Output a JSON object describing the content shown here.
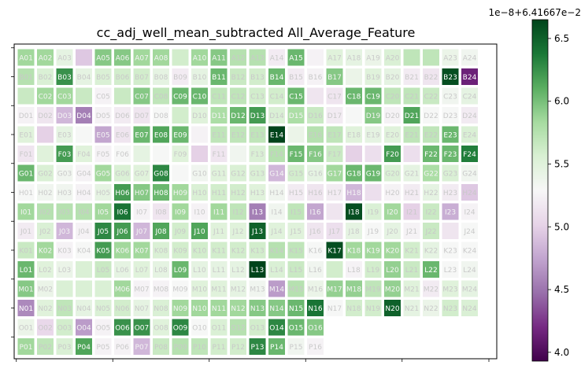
{
  "chart_data": {
    "type": "heatmap",
    "title": "cc_adj_well_mean_subtracted All_Average_Feature",
    "rows": [
      "A",
      "B",
      "C",
      "D",
      "E",
      "F",
      "G",
      "H",
      "I",
      "J",
      "K",
      "L",
      "M",
      "N",
      "O",
      "P"
    ],
    "cols": [
      "01",
      "02",
      "03",
      "04",
      "05",
      "06",
      "07",
      "08",
      "09",
      "10",
      "11",
      "12",
      "13",
      "14",
      "15",
      "16",
      "17",
      "18",
      "19",
      "20",
      "21",
      "22",
      "23",
      "24"
    ],
    "labeled_cells": [
      "A01 A02 A03 . A05 A06 A07 A08 . A10 A11 A12 A13 A14 A15 . A17 A18 A19 A20 . . A23 A24",
      "B01 B02 B03 B04 B05 B06 B07 B08 B09 B10 B11 B12 B13 B14 B15 B16 B17 . B19 B20 B21 B22 B23 B24",
      ". C02 C03 . C05 . C07 C08 C09 C10 C11 C12 C13 C14 C15 . C17 C18 C19 C20 C21 C22 C23 C24",
      "D01 D02 D03 D04 D05 D06 D07 D08 . D10 D11 D12 D13 D14 D15 D16 D17 . D19 D20 D21 D22 D23 D24",
      "E01 . E03 . E05 E06 E07 E08 E09 . E11 E12 E13 E14 . E16 E17 E18 E19 E20 E21 E22 E23 E24",
      "F01 . F03 F04 F05 F06 . . F09 . F11 . F13 F14 F15 F16 F17 . . F20 . F22 F23 F24",
      "G01 G02 G03 G04 G05 G06 G07 G08 . G10 G11 G12 G13 G14 G15 G16 G17 G18 G19 G20 G21 G22 G23 G24",
      "H01 H02 H03 H04 H05 H06 H07 H08 H09 H10 H11 H12 H13 H14 H15 H16 H17 H18 . H20 H21 H22 H23 H24",
      "I01 I02 I03 I04 I05 I06 I07 I08 I09 I10 I11 I12 I13 I14 I15 I16 . I18 I19 I20 I21 I22 I23 I24",
      "J01 J02 J03 J04 J05 J06 J07 J08 J09 J10 J11 J12 J13 J14 J15 J16 J17 J18 J19 J20 J21 J22 . J24",
      "K01 K02 K03 K04 K05 K06 K07 K08 K09 K10 K11 K12 K13 K14 K15 K16 K17 K18 K19 K20 K21 K22 K23 K24",
      "L01 L02 L03 . L05 L06 L07 L08 L09 L10 L11 L12 L13 L14 L15 L16 . L18 L19 L20 L21 L22 L23 L24",
      "M01 M02 . . . M06 M07 M08 M09 M10 M11 M12 M13 M14 M15 M16 M17 M18 M19 M20 M21 M22 M23 M24",
      "N01 N02 N03 N04 N05 N06 N07 N08 N09 N10 N11 N12 N13 N14 N15 N16 N17 N18 N19 N20 N21 N22 N23 N24",
      "O01 O02 O03 O04 O05 O06 O07 O08 O09 O10 O11 O12 O13 O14 O15 O16 . . . . . . . .",
      "P01 P02 P03 P04 P05 P06 P07 P08 P09 P10 P11 P12 P13 P14 P15 P16 . . . . . . . ."
    ],
    "values": [
      [
        5.85,
        5.85,
        5.45,
        4.95,
        5.95,
        5.95,
        5.85,
        5.85,
        5.6,
        5.85,
        5.95,
        5.75,
        5.75,
        5.2,
        6.05,
        5.25,
        5.5,
        5.45,
        5.4,
        5.55,
        5.7,
        5.7,
        5.4,
        5.35
      ],
      [
        5.75,
        5.55,
        6.25,
        5.45,
        5.55,
        5.6,
        5.6,
        5.45,
        5.2,
        5.45,
        6.05,
        5.65,
        5.6,
        6.05,
        5.2,
        5.25,
        5.95,
        5.4,
        5.5,
        5.45,
        5.2,
        5.15,
        6.6,
        4.15
      ],
      [
        5.65,
        5.85,
        5.85,
        5.65,
        5.25,
        5.65,
        5.95,
        5.7,
        6.05,
        6.05,
        5.7,
        5.7,
        5.6,
        5.6,
        6.05,
        5.15,
        5.15,
        6.05,
        6.05,
        5.7,
        5.7,
        5.65,
        5.35,
        5.45
      ],
      [
        5.25,
        5.15,
        4.85,
        4.55,
        5.25,
        5.2,
        5.15,
        5.3,
        5.6,
        5.5,
        5.8,
        6.05,
        6.2,
        5.55,
        5.8,
        5.65,
        5.2,
        5.3,
        5.95,
        5.25,
        6.15,
        5.3,
        5.3,
        5.2
      ],
      [
        5.5,
        5.0,
        5.45,
        5.3,
        4.75,
        5.15,
        6.05,
        6.15,
        6.05,
        5.25,
        5.7,
        5.7,
        5.7,
        6.7,
        5.4,
        5.75,
        5.7,
        5.5,
        5.45,
        5.5,
        5.7,
        5.7,
        6.05,
        5.55
      ],
      [
        5.15,
        5.5,
        6.2,
        5.5,
        5.25,
        5.3,
        5.45,
        5.3,
        5.5,
        5.0,
        5.15,
        5.35,
        5.55,
        5.75,
        6.05,
        5.95,
        5.65,
        5.0,
        5.1,
        6.2,
        5.1,
        6.05,
        6.05,
        6.35
      ],
      [
        6.05,
        5.55,
        5.35,
        5.25,
        5.85,
        5.55,
        5.5,
        6.3,
        5.3,
        5.35,
        5.5,
        5.55,
        5.55,
        4.85,
        5.6,
        5.45,
        5.85,
        6.05,
        6.05,
        5.55,
        5.45,
        5.8,
        5.55,
        5.35
      ],
      [
        5.3,
        5.35,
        5.35,
        5.25,
        5.45,
        6.2,
        5.95,
        6.05,
        5.85,
        5.55,
        5.6,
        5.6,
        5.5,
        5.35,
        5.2,
        5.15,
        5.2,
        4.85,
        5.1,
        5.25,
        5.2,
        5.45,
        5.2,
        4.95
      ],
      [
        5.85,
        5.75,
        5.75,
        5.75,
        5.85,
        6.4,
        5.25,
        5.15,
        5.85,
        5.25,
        5.85,
        5.7,
        4.55,
        5.35,
        5.7,
        4.75,
        5.15,
        6.6,
        5.55,
        5.85,
        5.0,
        5.65,
        4.8,
        5.25
      ],
      [
        5.2,
        5.55,
        4.85,
        5.25,
        6.3,
        6.2,
        4.85,
        6.15,
        5.6,
        6.15,
        5.5,
        5.5,
        6.5,
        5.5,
        5.5,
        5.15,
        5.1,
        5.45,
        5.3,
        5.45,
        5.25,
        5.65,
        5.15,
        5.3
      ],
      [
        5.65,
        5.85,
        5.25,
        5.3,
        6.2,
        5.85,
        5.85,
        5.55,
        5.6,
        5.6,
        5.6,
        5.6,
        5.6,
        5.75,
        5.7,
        5.3,
        6.6,
        5.85,
        5.85,
        5.85,
        5.6,
        5.45,
        5.3,
        5.3
      ],
      [
        6.05,
        5.5,
        5.4,
        5.55,
        5.65,
        5.45,
        5.5,
        5.45,
        6.05,
        5.45,
        5.45,
        5.45,
        6.65,
        5.55,
        5.65,
        5.35,
        5.6,
        5.25,
        5.6,
        5.9,
        5.65,
        6.05,
        5.3,
        5.35
      ],
      [
        5.95,
        5.4,
        5.55,
        5.55,
        5.55,
        5.85,
        5.25,
        5.25,
        5.3,
        5.5,
        5.5,
        5.45,
        5.35,
        4.7,
        5.75,
        5.4,
        5.9,
        5.9,
        5.7,
        5.9,
        5.5,
        5.2,
        5.5,
        5.45
      ],
      [
        4.6,
        5.5,
        5.7,
        5.45,
        5.55,
        5.6,
        5.45,
        5.55,
        5.85,
        5.85,
        5.85,
        5.85,
        5.95,
        5.95,
        6.05,
        6.4,
        5.3,
        5.6,
        5.6,
        6.5,
        5.45,
        5.4,
        5.6,
        5.55
      ],
      [
        5.4,
        5.05,
        5.6,
        4.7,
        5.25,
        6.25,
        6.25,
        5.5,
        6.3,
        5.3,
        5.55,
        5.75,
        5.6,
        6.3,
        6.05,
        5.95,
        null,
        null,
        null,
        null,
        null,
        null,
        null,
        null
      ],
      [
        5.85,
        5.7,
        5.55,
        6.15,
        5.25,
        5.25,
        4.85,
        5.65,
        5.75,
        5.7,
        5.6,
        5.6,
        6.3,
        6.05,
        5.35,
        5.25,
        null,
        null,
        null,
        null,
        null,
        null,
        null,
        null
      ]
    ],
    "colorbar": {
      "colormap": "PRGn",
      "offset_label": "1e−8+6.41667e−2",
      "tick_labels": [
        "4.0",
        "4.5",
        "5.0",
        "5.5",
        "6.0",
        "6.5"
      ],
      "tick_values": [
        4.0,
        4.5,
        5.0,
        5.5,
        6.0,
        6.5
      ],
      "range": [
        3.93,
        6.65
      ]
    },
    "grid": false
  }
}
